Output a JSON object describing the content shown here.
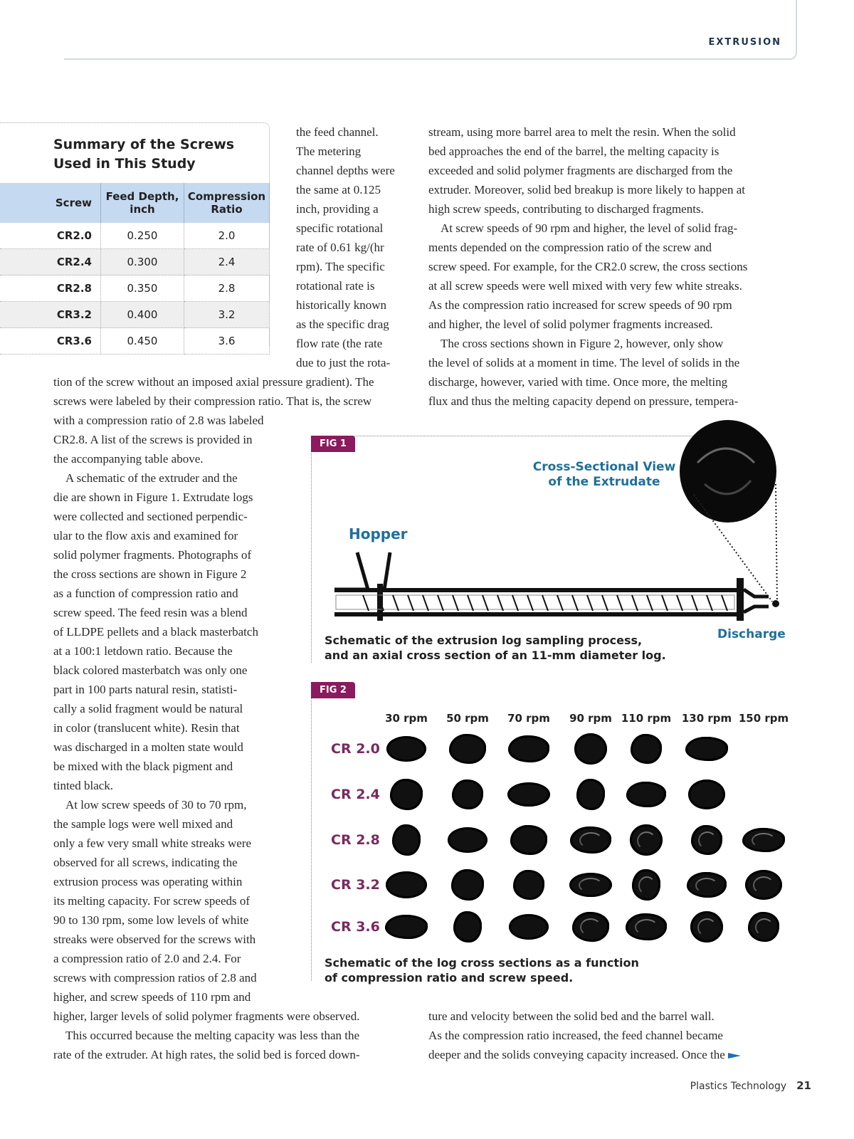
{
  "header": {
    "section": "EXTRUSION"
  },
  "table": {
    "title_lines": [
      "Summary of the Screws",
      "Used in This Study"
    ],
    "columns": [
      "Screw",
      "Feed Depth, inch",
      "Compression Ratio"
    ],
    "rows": [
      [
        "CR2.0",
        "0.250",
        "2.0"
      ],
      [
        "CR2.4",
        "0.300",
        "2.4"
      ],
      [
        "CR2.8",
        "0.350",
        "2.8"
      ],
      [
        "CR3.2",
        "0.400",
        "3.2"
      ],
      [
        "CR3.6",
        "0.450",
        "3.6"
      ]
    ]
  },
  "body": {
    "left_flow": [
      "the feed channel.",
      "The metering",
      "channel depths were",
      "the same at 0.125",
      "inch, providing a",
      "specific rotational",
      "rate of 0.61 kg/(hr",
      "rpm). The specific",
      "rotational rate is",
      "historically known",
      "as the specific drag",
      "flow rate (the rate",
      "due to just the rota-",
      "tion of the screw without an imposed axial pressure gradient). The",
      "screws were labeled by their compression ratio. That is, the screw",
      "with a compression ratio of 2.8 was labeled",
      "CR2.8. A list of the screws is provided in",
      "the accompanying table above.",
      " A schematic of the extruder and the",
      "die are shown in Figure 1. Extrudate logs",
      "were collected and sectioned perpendic-",
      "ular to the flow axis and examined for",
      "solid polymer fragments. Photographs of",
      "the cross sections are shown in Figure 2",
      "as a function of compression ratio and",
      "screw speed. The feed resin was a blend",
      "of LLDPE pellets and a black masterbatch",
      "at a 100:1 letdown ratio. Because the",
      "black colored masterbatch was only one",
      "part in 100 parts natural resin, statisti-",
      "cally a solid fragment would be natural",
      "in color (translucent white). Resin that",
      "was discharged in a molten state would",
      "be mixed with the black pigment and",
      "tinted black.",
      " At low screw speeds of 30 to 70 rpm,",
      "the sample logs were well mixed and",
      "only a few very small white streaks were",
      "observed for all screws, indicating the",
      "extrusion process was operating within",
      "its melting capacity. For screw speeds of",
      "90 to 130 rpm, some low levels of white",
      "streaks were observed for the screws with",
      "a compression ratio of 2.0 and 2.4. For",
      "screws with compression ratios of 2.8 and",
      "higher, and screw speeds of 110 rpm and",
      "higher, larger levels of solid polymer fragments were observed.",
      " This occurred because the melting capacity was less than the",
      "rate of the extruder. At high rates, the solid bed is forced down-"
    ],
    "right_top": [
      "stream, using more barrel area to melt the resin. When the solid",
      "bed approaches the end of the barrel, the melting capacity is",
      "exceeded and solid polymer fragments are discharged from the",
      "extruder. Moreover, solid bed breakup is more likely to happen at",
      "high screw speeds, contributing to discharged fragments.",
      " At screw speeds of 90 rpm and higher, the level of solid frag-",
      "ments depended on the compression ratio of the screw and",
      "screw speed. For example, for the CR2.0 screw, the cross sections",
      "at all screw speeds were well mixed with very few white streaks.",
      "As the compression ratio increased for screw speeds of 90 rpm",
      "and higher, the level of solid polymer fragments increased.",
      " The cross sections shown in Figure 2, however, only show",
      "the level of solids at a moment in time. The level of solids in the",
      "discharge, however, varied with time. Once more, the melting",
      "flux and thus the melting capacity depend on pressure, tempera-"
    ],
    "right_bottom": [
      "ture and velocity between the solid bed and the barrel wall.",
      "As the compression ratio increased, the feed channel became",
      "deeper and the solids conveying capacity increased. Once the"
    ]
  },
  "fig1": {
    "tag": "FIG 1",
    "cross_section_label": [
      "Cross-Sectional View",
      "of the Extrudate"
    ],
    "hopper_label": "Hopper",
    "discharge_label": "Discharge",
    "caption": [
      "Schematic of the extrusion log sampling process,",
      "and an axial cross section of an 11-mm diameter log."
    ]
  },
  "fig2": {
    "tag": "FIG 2",
    "speeds": [
      "30 rpm",
      "50 rpm",
      "70 rpm",
      "90 rpm",
      "110 rpm",
      "130 rpm",
      "150 rpm"
    ],
    "ratios": [
      "CR 2.0",
      "CR 2.4",
      "CR 2.8",
      "CR 3.2",
      "CR 3.6"
    ],
    "samples_present": [
      [
        true,
        true,
        true,
        true,
        true,
        true,
        false
      ],
      [
        true,
        true,
        true,
        true,
        true,
        true,
        false
      ],
      [
        true,
        true,
        true,
        true,
        true,
        true,
        true
      ],
      [
        true,
        true,
        true,
        true,
        true,
        true,
        true
      ],
      [
        true,
        true,
        true,
        true,
        true,
        true,
        true
      ]
    ],
    "caption": [
      "Schematic of the log cross sections as a function",
      "of compression ratio and screw speed."
    ]
  },
  "footer": {
    "publication": "Plastics Technology",
    "page": "21"
  },
  "colors": {
    "fig_tag": "#8b1a5e",
    "label_blue": "#1f6f9c",
    "table_header": "#c5d9f0",
    "continue_arrow": "#1f6fb5"
  }
}
